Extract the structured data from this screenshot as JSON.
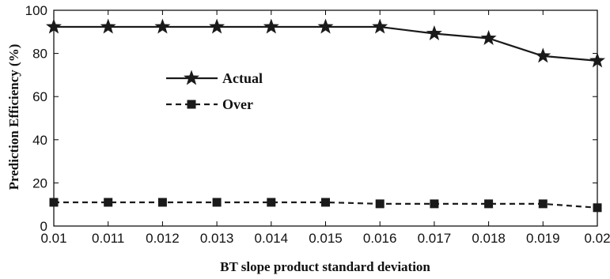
{
  "chart_data": {
    "type": "line",
    "xlabel": "BT slope product standard deviation",
    "ylabel": "Prediction Efficiency (%)",
    "x": [
      0.01,
      0.011,
      0.012,
      0.013,
      0.014,
      0.015,
      0.016,
      0.017,
      0.018,
      0.019,
      0.02
    ],
    "x_tick_labels": [
      "0.01",
      "0.011",
      "0.012",
      "0.013",
      "0.014",
      "0.015",
      "0.016",
      "0.017",
      "0.018",
      "0.019",
      "0.02"
    ],
    "xlim": [
      0.01,
      0.02
    ],
    "ylim": [
      0,
      100
    ],
    "y_ticks": [
      0,
      20,
      40,
      60,
      80,
      100
    ],
    "y_tick_labels": [
      "0",
      "20",
      "40",
      "60",
      "80",
      "100"
    ],
    "grid": false,
    "legend_position": "upper-left-inside",
    "series": [
      {
        "name": "Actual",
        "marker": "star",
        "line": "solid",
        "color": "#1a1a1a",
        "values": [
          92.3,
          92.3,
          92.3,
          92.3,
          92.3,
          92.3,
          92.3,
          89.2,
          87.0,
          78.8,
          76.6
        ]
      },
      {
        "name": "Over",
        "marker": "square",
        "line": "dashed",
        "color": "#1a1a1a",
        "values": [
          11.0,
          11.0,
          11.0,
          11.0,
          11.0,
          11.0,
          10.3,
          10.3,
          10.3,
          10.3,
          8.5
        ]
      }
    ]
  }
}
